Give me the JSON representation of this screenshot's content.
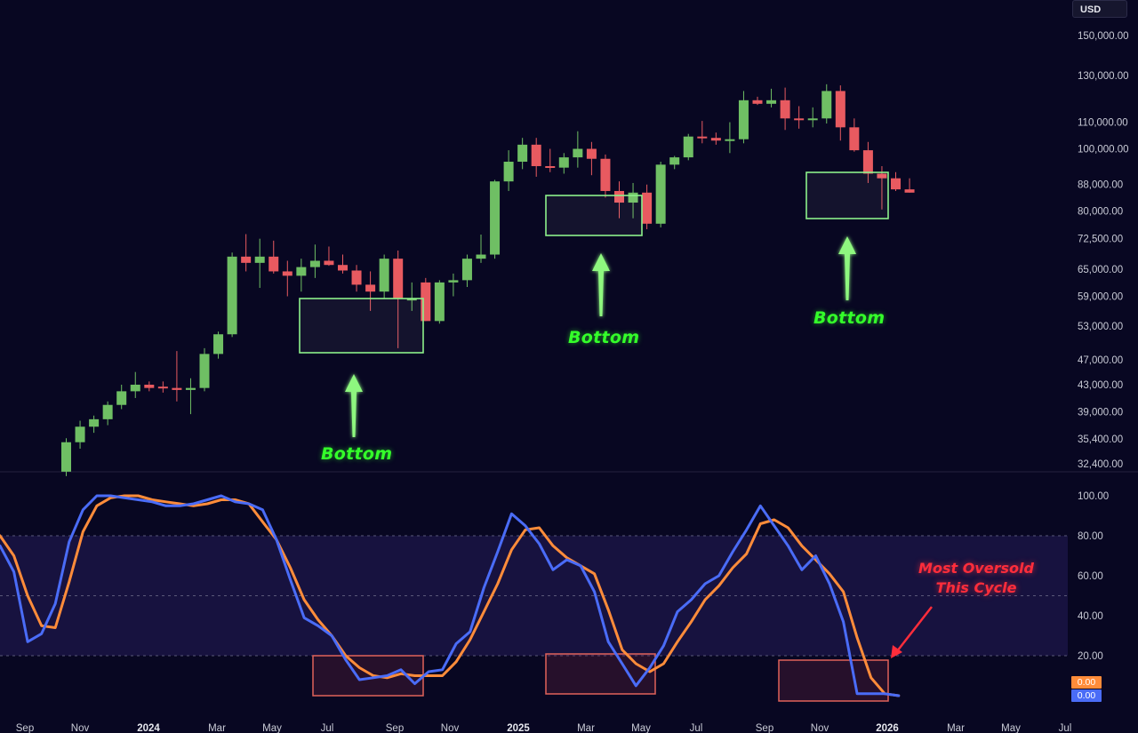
{
  "currency_badge": "USD",
  "colors": {
    "background": "#080722",
    "candle_up": "#6fbf64",
    "candle_down": "#e85a60",
    "bottom_box": "#8df08a",
    "bottom_text": "#34ff2a",
    "stoch_k": "#4a6cf7",
    "stoch_d": "#ff8c3a",
    "oversold_box": "#e0625a",
    "oversold_text": "#ff2d3b",
    "band_fill": "#17123f"
  },
  "annotations": {
    "bottom_1": "Bottom",
    "bottom_2": "Bottom",
    "bottom_3": "Bottom",
    "oversold_line1": "Most Oversold",
    "oversold_line2": "This Cycle"
  },
  "chart_data": [
    {
      "type": "candlestick",
      "scale": "log",
      "price_axis_ticks": [
        "150,000.00",
        "130,000.00",
        "110,000.00",
        "100,000.00",
        "88,000.00",
        "80,000.00",
        "72,500.00",
        "65,000.00",
        "59,000.00",
        "53,000.00",
        "47,000.00",
        "43,000.00",
        "39,000.00",
        "35,400.00",
        "32,400.00"
      ],
      "time_axis_ticks": [
        {
          "label": "Sep",
          "bold": false
        },
        {
          "label": "Nov",
          "bold": false
        },
        {
          "label": "2024",
          "bold": true
        },
        {
          "label": "Mar",
          "bold": false
        },
        {
          "label": "May",
          "bold": false
        },
        {
          "label": "Jul",
          "bold": false
        },
        {
          "label": "Sep",
          "bold": false
        },
        {
          "label": "Nov",
          "bold": false
        },
        {
          "label": "2025",
          "bold": true
        },
        {
          "label": "Mar",
          "bold": false
        },
        {
          "label": "May",
          "bold": false
        },
        {
          "label": "Jul",
          "bold": false
        },
        {
          "label": "Sep",
          "bold": false
        },
        {
          "label": "Nov",
          "bold": false
        },
        {
          "label": "2026",
          "bold": true
        },
        {
          "label": "Mar",
          "bold": false
        },
        {
          "label": "May",
          "bold": false
        },
        {
          "label": "Jul",
          "bold": false
        }
      ],
      "candles": [
        {
          "o": 31500,
          "h": 35500,
          "l": 31000,
          "c": 35000
        },
        {
          "o": 35000,
          "h": 37800,
          "l": 34200,
          "c": 37000
        },
        {
          "o": 37000,
          "h": 38500,
          "l": 36200,
          "c": 38000
        },
        {
          "o": 38000,
          "h": 40500,
          "l": 37200,
          "c": 40000
        },
        {
          "o": 40000,
          "h": 43000,
          "l": 39400,
          "c": 42000
        },
        {
          "o": 42000,
          "h": 45000,
          "l": 41000,
          "c": 43000
        },
        {
          "o": 43000,
          "h": 43500,
          "l": 42000,
          "c": 42500
        },
        {
          "o": 42700,
          "h": 43500,
          "l": 41800,
          "c": 42500
        },
        {
          "o": 42500,
          "h": 48500,
          "l": 40500,
          "c": 42200
        },
        {
          "o": 42200,
          "h": 44000,
          "l": 38700,
          "c": 42500
        },
        {
          "o": 42500,
          "h": 49000,
          "l": 42000,
          "c": 48000
        },
        {
          "o": 48000,
          "h": 52000,
          "l": 47200,
          "c": 51500
        },
        {
          "o": 51500,
          "h": 69000,
          "l": 51000,
          "c": 68000
        },
        {
          "o": 68000,
          "h": 73700,
          "l": 64500,
          "c": 66500
        },
        {
          "o": 66500,
          "h": 72500,
          "l": 60800,
          "c": 68000
        },
        {
          "o": 68000,
          "h": 72000,
          "l": 64000,
          "c": 64500
        },
        {
          "o": 64500,
          "h": 67000,
          "l": 59000,
          "c": 63500
        },
        {
          "o": 63500,
          "h": 67500,
          "l": 60000,
          "c": 65500
        },
        {
          "o": 65500,
          "h": 71000,
          "l": 63000,
          "c": 67000
        },
        {
          "o": 67000,
          "h": 70500,
          "l": 65800,
          "c": 66000
        },
        {
          "o": 66000,
          "h": 68500,
          "l": 64000,
          "c": 64700
        },
        {
          "o": 64700,
          "h": 66000,
          "l": 60000,
          "c": 61500
        },
        {
          "o": 61500,
          "h": 64500,
          "l": 56000,
          "c": 60000
        },
        {
          "o": 60000,
          "h": 68500,
          "l": 58500,
          "c": 67500
        },
        {
          "o": 67500,
          "h": 69500,
          "l": 49000,
          "c": 58500
        },
        {
          "o": 58500,
          "h": 62000,
          "l": 56000,
          "c": 58500
        },
        {
          "o": 62000,
          "h": 63000,
          "l": 54000,
          "c": 54000
        },
        {
          "o": 54000,
          "h": 62500,
          "l": 53500,
          "c": 62000
        },
        {
          "o": 62000,
          "h": 64000,
          "l": 59000,
          "c": 62500
        },
        {
          "o": 62500,
          "h": 68500,
          "l": 61000,
          "c": 67500
        },
        {
          "o": 67500,
          "h": 73600,
          "l": 66500,
          "c": 68500
        },
        {
          "o": 68500,
          "h": 89500,
          "l": 67500,
          "c": 89000
        },
        {
          "o": 89000,
          "h": 99500,
          "l": 86000,
          "c": 95500
        },
        {
          "o": 95500,
          "h": 104000,
          "l": 93000,
          "c": 101500
        },
        {
          "o": 101500,
          "h": 104000,
          "l": 90500,
          "c": 94000
        },
        {
          "o": 94000,
          "h": 100000,
          "l": 92000,
          "c": 93500
        },
        {
          "o": 93500,
          "h": 98500,
          "l": 91500,
          "c": 97000
        },
        {
          "o": 97000,
          "h": 106500,
          "l": 93500,
          "c": 100000
        },
        {
          "o": 100000,
          "h": 102500,
          "l": 91000,
          "c": 96500
        },
        {
          "o": 96500,
          "h": 98000,
          "l": 84000,
          "c": 86000
        },
        {
          "o": 86000,
          "h": 89000,
          "l": 78000,
          "c": 82500
        },
        {
          "o": 82500,
          "h": 88500,
          "l": 78000,
          "c": 85500
        },
        {
          "o": 85500,
          "h": 88000,
          "l": 75000,
          "c": 76500
        },
        {
          "o": 76500,
          "h": 95500,
          "l": 75500,
          "c": 94500
        },
        {
          "o": 94500,
          "h": 97500,
          "l": 93000,
          "c": 97000
        },
        {
          "o": 97000,
          "h": 105500,
          "l": 96000,
          "c": 104500
        },
        {
          "o": 104500,
          "h": 110500,
          "l": 102000,
          "c": 104000
        },
        {
          "o": 104000,
          "h": 106000,
          "l": 101500,
          "c": 103000
        },
        {
          "o": 103000,
          "h": 110000,
          "l": 98500,
          "c": 103500
        },
        {
          "o": 103500,
          "h": 123000,
          "l": 102000,
          "c": 119000
        },
        {
          "o": 119000,
          "h": 120500,
          "l": 117000,
          "c": 117500
        },
        {
          "o": 117500,
          "h": 124000,
          "l": 116000,
          "c": 119000
        },
        {
          "o": 119000,
          "h": 124500,
          "l": 107000,
          "c": 111500
        },
        {
          "o": 111500,
          "h": 116500,
          "l": 107500,
          "c": 111000
        },
        {
          "o": 111000,
          "h": 116000,
          "l": 108000,
          "c": 111500
        },
        {
          "o": 111500,
          "h": 126000,
          "l": 109500,
          "c": 123000
        },
        {
          "o": 123000,
          "h": 125500,
          "l": 103000,
          "c": 108000
        },
        {
          "o": 108000,
          "h": 111500,
          "l": 99000,
          "c": 99500
        },
        {
          "o": 99500,
          "h": 102500,
          "l": 88500,
          "c": 91500
        },
        {
          "o": 91500,
          "h": 94000,
          "l": 80500,
          "c": 90000
        },
        {
          "o": 90000,
          "h": 92000,
          "l": 86000,
          "c": 86500
        },
        {
          "o": 86500,
          "h": 90000,
          "l": 85500,
          "c": 85500
        }
      ]
    },
    {
      "type": "line",
      "title": "",
      "ylim": [
        0,
        100
      ],
      "y_ticks": [
        "100.00",
        "80.00",
        "60.00",
        "40.00",
        "20.00"
      ],
      "bands": [
        20,
        80
      ],
      "series": [
        {
          "values": [
            75,
            62,
            27,
            31,
            46,
            77,
            93,
            100,
            100,
            99,
            98,
            97,
            95,
            95,
            96,
            98,
            100,
            97,
            96,
            93,
            78,
            58,
            39,
            35,
            30,
            18,
            8,
            9,
            10,
            13,
            6,
            12,
            13,
            26,
            32,
            54,
            72,
            91,
            85,
            76,
            63,
            68,
            65,
            52,
            27,
            16,
            5,
            14,
            25,
            42,
            48,
            56,
            60,
            72,
            83,
            95,
            85,
            75,
            63,
            70,
            56,
            37,
            1,
            1,
            1,
            0
          ]
        },
        {
          "values": [
            80,
            70,
            50,
            35,
            34,
            57,
            82,
            95,
            99,
            100,
            100,
            98,
            97,
            96,
            95,
            96,
            98,
            98,
            96,
            87,
            78,
            64,
            48,
            38,
            30,
            20,
            14,
            10,
            9,
            11,
            10,
            10,
            10,
            17,
            28,
            42,
            56,
            73,
            83,
            84,
            75,
            69,
            65,
            61,
            43,
            23,
            16,
            12,
            16,
            27,
            37,
            48,
            55,
            64,
            71,
            86,
            88,
            84,
            75,
            68,
            61,
            52,
            29,
            9,
            1,
            0
          ]
        }
      ],
      "value_badges": [
        {
          "label": "0.00",
          "color": "#ff8c3a"
        },
        {
          "label": "0.00",
          "color": "#4a6cf7"
        }
      ]
    }
  ]
}
